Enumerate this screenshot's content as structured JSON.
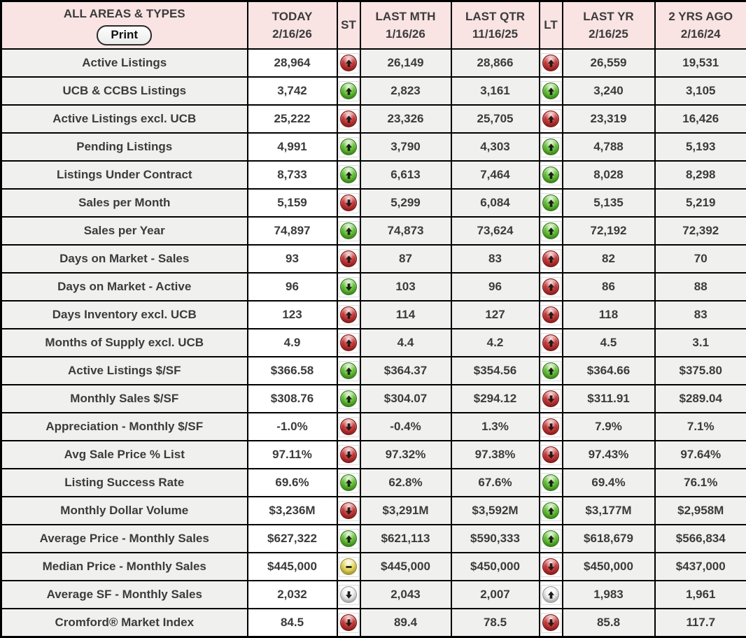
{
  "colors": {
    "header_bg": "#f9e3e3",
    "row_stripe_bg": "#f0f0ef",
    "today_column_bg": "#ffffff",
    "text": "#3b3b3b",
    "grid": "#000000",
    "icon_red": "#c22020",
    "icon_green": "#54bf2a",
    "icon_yellow": "#e0d04a",
    "icon_neutral": "#e9e9e9"
  },
  "header": {
    "title": "ALL AREAS & TYPES",
    "print_label": "Print",
    "columns": [
      {
        "key": "today",
        "label": "TODAY",
        "date": "2/16/26"
      },
      {
        "key": "st",
        "label": "ST",
        "date": ""
      },
      {
        "key": "last_mth",
        "label": "LAST MTH",
        "date": "1/16/26"
      },
      {
        "key": "last_qtr",
        "label": "LAST QTR",
        "date": "11/16/25"
      },
      {
        "key": "lt",
        "label": "LT",
        "date": ""
      },
      {
        "key": "last_yr",
        "label": "LAST YR",
        "date": "2/16/25"
      },
      {
        "key": "two_yrs_ago",
        "label": "2 YRS AGO",
        "date": "2/16/24"
      }
    ]
  },
  "icon_legend": {
    "up-red": "red orb, up arrow (worsening increase)",
    "up-green": "green orb, up arrow (improving increase)",
    "down-red": "red orb, down arrow (worsening decrease)",
    "down-green": "green orb, down arrow (improving decrease)",
    "flat-yellow": "yellow orb, minus bar (no change)",
    "up-neutral": "white orb, up arrow (neutral increase)",
    "down-neutral": "white orb, down arrow (neutral decrease)"
  },
  "rows": [
    {
      "label": "Active Listings",
      "today": "28,964",
      "st": "up-red",
      "last_mth": "26,149",
      "last_qtr": "28,866",
      "lt": "up-red",
      "last_yr": "26,559",
      "two_yrs_ago": "19,531"
    },
    {
      "label": "UCB & CCBS Listings",
      "today": "3,742",
      "st": "up-green",
      "last_mth": "2,823",
      "last_qtr": "3,161",
      "lt": "up-green",
      "last_yr": "3,240",
      "two_yrs_ago": "3,105"
    },
    {
      "label": "Active Listings excl. UCB",
      "today": "25,222",
      "st": "up-red",
      "last_mth": "23,326",
      "last_qtr": "25,705",
      "lt": "up-red",
      "last_yr": "23,319",
      "two_yrs_ago": "16,426"
    },
    {
      "label": "Pending Listings",
      "today": "4,991",
      "st": "up-green",
      "last_mth": "3,790",
      "last_qtr": "4,303",
      "lt": "up-green",
      "last_yr": "4,788",
      "two_yrs_ago": "5,193"
    },
    {
      "label": "Listings Under Contract",
      "today": "8,733",
      "st": "up-green",
      "last_mth": "6,613",
      "last_qtr": "7,464",
      "lt": "up-green",
      "last_yr": "8,028",
      "two_yrs_ago": "8,298"
    },
    {
      "label": "Sales per Month",
      "today": "5,159",
      "st": "down-red",
      "last_mth": "5,299",
      "last_qtr": "6,084",
      "lt": "up-green",
      "last_yr": "5,135",
      "two_yrs_ago": "5,219"
    },
    {
      "label": "Sales per Year",
      "today": "74,897",
      "st": "up-green",
      "last_mth": "74,873",
      "last_qtr": "73,624",
      "lt": "up-green",
      "last_yr": "72,192",
      "two_yrs_ago": "72,392"
    },
    {
      "label": "Days on Market - Sales",
      "today": "93",
      "st": "up-red",
      "last_mth": "87",
      "last_qtr": "83",
      "lt": "up-red",
      "last_yr": "82",
      "two_yrs_ago": "70"
    },
    {
      "label": "Days on Market - Active",
      "today": "96",
      "st": "down-green",
      "last_mth": "103",
      "last_qtr": "96",
      "lt": "up-red",
      "last_yr": "86",
      "two_yrs_ago": "88"
    },
    {
      "label": "Days Inventory excl. UCB",
      "today": "123",
      "st": "up-red",
      "last_mth": "114",
      "last_qtr": "127",
      "lt": "up-red",
      "last_yr": "118",
      "two_yrs_ago": "83"
    },
    {
      "label": "Months of Supply excl. UCB",
      "today": "4.9",
      "st": "up-red",
      "last_mth": "4.4",
      "last_qtr": "4.2",
      "lt": "up-red",
      "last_yr": "4.5",
      "two_yrs_ago": "3.1"
    },
    {
      "label": "Active Listings $/SF",
      "today": "$366.58",
      "st": "up-green",
      "last_mth": "$364.37",
      "last_qtr": "$354.56",
      "lt": "up-green",
      "last_yr": "$364.66",
      "two_yrs_ago": "$375.80"
    },
    {
      "label": "Monthly Sales $/SF",
      "today": "$308.76",
      "st": "up-green",
      "last_mth": "$304.07",
      "last_qtr": "$294.12",
      "lt": "down-red",
      "last_yr": "$311.91",
      "two_yrs_ago": "$289.04"
    },
    {
      "label": "Appreciation - Monthly $/SF",
      "today": "-1.0%",
      "st": "down-red",
      "last_mth": "-0.4%",
      "last_qtr": "1.3%",
      "lt": "down-red",
      "last_yr": "7.9%",
      "two_yrs_ago": "7.1%"
    },
    {
      "label": "Avg Sale Price % List",
      "today": "97.11%",
      "st": "down-red",
      "last_mth": "97.32%",
      "last_qtr": "97.38%",
      "lt": "down-red",
      "last_yr": "97.43%",
      "two_yrs_ago": "97.64%"
    },
    {
      "label": "Listing Success Rate",
      "today": "69.6%",
      "st": "up-green",
      "last_mth": "62.8%",
      "last_qtr": "67.6%",
      "lt": "up-green",
      "last_yr": "69.4%",
      "two_yrs_ago": "76.1%"
    },
    {
      "label": "Monthly Dollar Volume",
      "today": "$3,236M",
      "st": "down-red",
      "last_mth": "$3,291M",
      "last_qtr": "$3,592M",
      "lt": "up-green",
      "last_yr": "$3,177M",
      "two_yrs_ago": "$2,958M"
    },
    {
      "label": "Average Price - Monthly Sales",
      "today": "$627,322",
      "st": "up-green",
      "last_mth": "$621,113",
      "last_qtr": "$590,333",
      "lt": "up-green",
      "last_yr": "$618,679",
      "two_yrs_ago": "$566,834"
    },
    {
      "label": "Median Price - Monthly Sales",
      "today": "$445,000",
      "st": "flat-yellow",
      "last_mth": "$445,000",
      "last_qtr": "$450,000",
      "lt": "down-red",
      "last_yr": "$450,000",
      "two_yrs_ago": "$437,000"
    },
    {
      "label": "Average SF - Monthly Sales",
      "today": "2,032",
      "st": "down-neutral",
      "last_mth": "2,043",
      "last_qtr": "2,007",
      "lt": "up-neutral",
      "last_yr": "1,983",
      "two_yrs_ago": "1,961"
    },
    {
      "label": "Cromford® Market Index",
      "today": "84.5",
      "st": "down-red",
      "last_mth": "89.4",
      "last_qtr": "78.5",
      "lt": "down-red",
      "last_yr": "85.8",
      "two_yrs_ago": "117.7"
    }
  ]
}
